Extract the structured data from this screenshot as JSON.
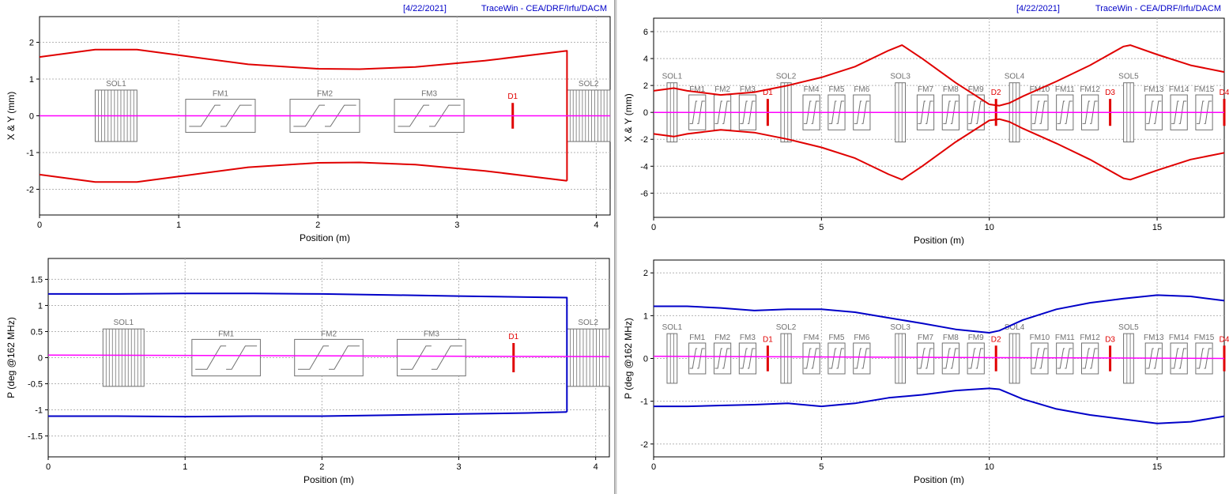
{
  "header": {
    "date": "[4/22/2021]",
    "app": "TraceWin - CEA/DRF/Irfu/DACM"
  },
  "colors": {
    "envelope_xy": "#e00000",
    "envelope_phase": "#0000c8",
    "centroid": "#ff00ff",
    "diagnostic": "#e00000",
    "element": "#707070",
    "grid": "#b4b4b4"
  },
  "chart_data": [
    {
      "type": "line",
      "xlabel": "Position (m)",
      "ylabel": "X & Y (mm)",
      "xlim": [
        0,
        4.1
      ],
      "ylim": [
        -2.7,
        2.7
      ],
      "xticks": [
        "0",
        "1",
        "2",
        "3",
        "4"
      ],
      "xtick_values": [
        0,
        1,
        2,
        3,
        4
      ],
      "yticks": [
        "2",
        "1",
        "0",
        "-1",
        "-2"
      ],
      "ytick_values": [
        2,
        1,
        0,
        -1,
        -2
      ],
      "grid": true,
      "series": [
        {
          "x": [
            0,
            0.4,
            0.7,
            1.0,
            1.5,
            2.0,
            2.3,
            2.7,
            3.2,
            3.79,
            3.79
          ],
          "y": [
            1.6,
            1.8,
            1.8,
            1.65,
            1.4,
            1.28,
            1.27,
            1.33,
            1.5,
            1.77,
            -1.77
          ],
          "color": "#e00000"
        },
        {
          "x": [
            0,
            0.4,
            0.7,
            1.0,
            1.5,
            2.0,
            2.3,
            2.7,
            3.2,
            3.79
          ],
          "y": [
            -1.6,
            -1.8,
            -1.8,
            -1.65,
            -1.4,
            -1.28,
            -1.27,
            -1.33,
            -1.5,
            -1.77
          ],
          "color": "#e00000"
        },
        {
          "x": [
            0,
            4.1
          ],
          "y": [
            0.0,
            0.0
          ],
          "color": "#ff00ff"
        }
      ],
      "elements": [
        {
          "label": "SOL1",
          "kind": "sol",
          "x0": 0.4,
          "x1": 0.7,
          "h": 0.7
        },
        {
          "label": "FM1",
          "kind": "fm",
          "x0": 1.05,
          "x1": 1.55,
          "h": 0.45
        },
        {
          "label": "FM2",
          "kind": "fm",
          "x0": 1.8,
          "x1": 2.3,
          "h": 0.45
        },
        {
          "label": "FM3",
          "kind": "fm",
          "x0": 2.55,
          "x1": 3.05,
          "h": 0.45
        },
        {
          "label": "D1",
          "kind": "diag",
          "x0": 3.4,
          "x1": 3.4,
          "h": 0.35
        },
        {
          "label": "SOL2",
          "kind": "sol",
          "x0": 3.79,
          "x1": 4.1,
          "h": 0.7
        }
      ]
    },
    {
      "type": "line",
      "xlabel": "Position (m)",
      "ylabel": "P (deg @162 MHz)",
      "xlim": [
        0,
        4.1
      ],
      "ylim": [
        -1.9,
        1.9
      ],
      "xticks": [
        "0",
        "1",
        "2",
        "3",
        "4"
      ],
      "xtick_values": [
        0,
        1,
        2,
        3,
        4
      ],
      "yticks": [
        "1.5",
        "1",
        "0.5",
        "0",
        "-0.5",
        "-1",
        "-1.5"
      ],
      "ytick_values": [
        1.5,
        1,
        0.5,
        0,
        -0.5,
        -1,
        -1.5
      ],
      "grid": true,
      "series": [
        {
          "x": [
            0,
            0.5,
            1.0,
            1.5,
            2.0,
            2.5,
            3.0,
            3.5,
            3.79,
            3.79
          ],
          "y": [
            1.22,
            1.22,
            1.23,
            1.23,
            1.22,
            1.2,
            1.18,
            1.16,
            1.15,
            -1.04
          ],
          "color": "#0000c8"
        },
        {
          "x": [
            0,
            0.5,
            1.0,
            1.5,
            2.0,
            2.5,
            3.0,
            3.5,
            3.79
          ],
          "y": [
            -1.12,
            -1.12,
            -1.13,
            -1.12,
            -1.12,
            -1.1,
            -1.08,
            -1.06,
            -1.04
          ],
          "color": "#0000c8"
        },
        {
          "x": [
            0,
            4.1
          ],
          "y": [
            0.05,
            0.02
          ],
          "color": "#ff00ff"
        }
      ],
      "elements": [
        {
          "label": "SOL1",
          "kind": "sol",
          "x0": 0.4,
          "x1": 0.7,
          "h": 0.55
        },
        {
          "label": "FM1",
          "kind": "fm",
          "x0": 1.05,
          "x1": 1.55,
          "h": 0.35
        },
        {
          "label": "FM2",
          "kind": "fm",
          "x0": 1.8,
          "x1": 2.3,
          "h": 0.35
        },
        {
          "label": "FM3",
          "kind": "fm",
          "x0": 2.55,
          "x1": 3.05,
          "h": 0.35
        },
        {
          "label": "D1",
          "kind": "diag",
          "x0": 3.4,
          "x1": 3.4,
          "h": 0.28
        },
        {
          "label": "SOL2",
          "kind": "sol",
          "x0": 3.79,
          "x1": 4.1,
          "h": 0.55
        }
      ]
    },
    {
      "type": "line",
      "xlabel": "Position (m)",
      "ylabel": "X & Y (mm)",
      "xlim": [
        0,
        17
      ],
      "ylim": [
        -7.8,
        7.0
      ],
      "xticks": [
        "0",
        "5",
        "10",
        "15"
      ],
      "xtick_values": [
        0,
        5,
        10,
        15
      ],
      "yticks": [
        "6",
        "4",
        "2",
        "0",
        "-2",
        "-4",
        "-6"
      ],
      "ytick_values": [
        6,
        4,
        2,
        0,
        -2,
        -4,
        -6
      ],
      "grid": true,
      "series": [
        {
          "x": [
            0,
            0.6,
            1.0,
            2.0,
            3.0,
            4.0,
            5.0,
            6.0,
            7.0,
            7.4,
            8.0,
            9.0,
            10.0,
            10.3,
            10.6,
            11.0,
            12.0,
            13.0,
            14.0,
            14.2,
            15.0,
            16.0,
            17.0
          ],
          "y": [
            1.6,
            1.8,
            1.6,
            1.3,
            1.5,
            2.0,
            2.6,
            3.4,
            4.6,
            5.0,
            4.0,
            2.2,
            0.6,
            0.5,
            0.7,
            1.2,
            2.3,
            3.5,
            4.9,
            5.0,
            4.3,
            3.5,
            3.0
          ],
          "color": "#e00000"
        },
        {
          "x": [
            0,
            0.6,
            1.0,
            2.0,
            3.0,
            4.0,
            5.0,
            6.0,
            7.0,
            7.4,
            8.0,
            9.0,
            10.0,
            10.3,
            10.6,
            11.0,
            12.0,
            13.0,
            14.0,
            14.2,
            15.0,
            16.0,
            17.0
          ],
          "y": [
            -1.6,
            -1.8,
            -1.6,
            -1.3,
            -1.5,
            -2.0,
            -2.6,
            -3.4,
            -4.6,
            -5.0,
            -4.0,
            -2.2,
            -0.6,
            -0.5,
            -0.7,
            -1.2,
            -2.3,
            -3.5,
            -4.9,
            -5.0,
            -4.3,
            -3.5,
            -3.0
          ],
          "color": "#e00000"
        },
        {
          "x": [
            0,
            17
          ],
          "y": [
            0.0,
            0.0
          ],
          "color": "#ff00ff"
        }
      ],
      "elements": [
        {
          "label": "SOL1",
          "kind": "sol",
          "x0": 0.4,
          "x1": 0.7,
          "h": 2.2
        },
        {
          "label": "FM1",
          "kind": "fm",
          "x0": 1.05,
          "x1": 1.55,
          "h": 1.3
        },
        {
          "label": "FM2",
          "kind": "fm",
          "x0": 1.8,
          "x1": 2.3,
          "h": 1.3
        },
        {
          "label": "FM3",
          "kind": "fm",
          "x0": 2.55,
          "x1": 3.05,
          "h": 1.3
        },
        {
          "label": "D1",
          "kind": "diag",
          "x0": 3.4,
          "x1": 3.4,
          "h": 1.0
        },
        {
          "label": "SOL2",
          "kind": "sol",
          "x0": 3.79,
          "x1": 4.1,
          "h": 2.2
        },
        {
          "label": "FM4",
          "kind": "fm",
          "x0": 4.45,
          "x1": 4.95,
          "h": 1.3
        },
        {
          "label": "FM5",
          "kind": "fm",
          "x0": 5.2,
          "x1": 5.7,
          "h": 1.3
        },
        {
          "label": "FM6",
          "kind": "fm",
          "x0": 5.95,
          "x1": 6.45,
          "h": 1.3
        },
        {
          "label": "SOL3",
          "kind": "sol",
          "x0": 7.2,
          "x1": 7.5,
          "h": 2.2
        },
        {
          "label": "FM7",
          "kind": "fm",
          "x0": 7.85,
          "x1": 8.35,
          "h": 1.3
        },
        {
          "label": "FM8",
          "kind": "fm",
          "x0": 8.6,
          "x1": 9.1,
          "h": 1.3
        },
        {
          "label": "FM9",
          "kind": "fm",
          "x0": 9.35,
          "x1": 9.85,
          "h": 1.3
        },
        {
          "label": "D2",
          "kind": "diag",
          "x0": 10.2,
          "x1": 10.2,
          "h": 1.0
        },
        {
          "label": "SOL4",
          "kind": "sol",
          "x0": 10.6,
          "x1": 10.9,
          "h": 2.2
        },
        {
          "label": "FM10",
          "kind": "fm",
          "x0": 11.25,
          "x1": 11.75,
          "h": 1.3
        },
        {
          "label": "FM11",
          "kind": "fm",
          "x0": 12.0,
          "x1": 12.5,
          "h": 1.3
        },
        {
          "label": "FM12",
          "kind": "fm",
          "x0": 12.75,
          "x1": 13.25,
          "h": 1.3
        },
        {
          "label": "D3",
          "kind": "diag",
          "x0": 13.6,
          "x1": 13.6,
          "h": 1.0
        },
        {
          "label": "SOL5",
          "kind": "sol",
          "x0": 14.0,
          "x1": 14.3,
          "h": 2.2
        },
        {
          "label": "FM13",
          "kind": "fm",
          "x0": 14.65,
          "x1": 15.15,
          "h": 1.3
        },
        {
          "label": "FM14",
          "kind": "fm",
          "x0": 15.4,
          "x1": 15.9,
          "h": 1.3
        },
        {
          "label": "FM15",
          "kind": "fm",
          "x0": 16.15,
          "x1": 16.65,
          "h": 1.3
        },
        {
          "label": "D4",
          "kind": "diag",
          "x0": 17.0,
          "x1": 17.0,
          "h": 1.0
        }
      ]
    },
    {
      "type": "line",
      "xlabel": "Position (m)",
      "ylabel": "P (deg @162 MHz)",
      "xlim": [
        0,
        17
      ],
      "ylim": [
        -2.3,
        2.3
      ],
      "xticks": [
        "0",
        "5",
        "10",
        "15"
      ],
      "xtick_values": [
        0,
        5,
        10,
        15
      ],
      "yticks": [
        "2",
        "1",
        "0",
        "-1",
        "-2"
      ],
      "ytick_values": [
        2,
        1,
        0,
        -1,
        -2
      ],
      "grid": true,
      "series": [
        {
          "x": [
            0,
            1.0,
            2.0,
            3.0,
            4.0,
            5.0,
            6.0,
            7.0,
            8.0,
            9.0,
            10.0,
            10.3,
            11.0,
            12.0,
            13.0,
            14.0,
            15.0,
            16.0,
            17.0
          ],
          "y": [
            1.22,
            1.22,
            1.18,
            1.12,
            1.15,
            1.15,
            1.08,
            0.95,
            0.82,
            0.68,
            0.6,
            0.65,
            0.9,
            1.15,
            1.3,
            1.4,
            1.48,
            1.45,
            1.35
          ],
          "color": "#0000c8"
        },
        {
          "x": [
            0,
            1.0,
            2.0,
            3.0,
            4.0,
            5.0,
            6.0,
            7.0,
            8.0,
            9.0,
            10.0,
            10.3,
            11.0,
            12.0,
            13.0,
            14.0,
            15.0,
            16.0,
            17.0
          ],
          "y": [
            -1.12,
            -1.12,
            -1.1,
            -1.08,
            -1.05,
            -1.12,
            -1.05,
            -0.92,
            -0.85,
            -0.75,
            -0.7,
            -0.72,
            -0.95,
            -1.18,
            -1.32,
            -1.42,
            -1.52,
            -1.48,
            -1.35
          ],
          "color": "#0000c8"
        },
        {
          "x": [
            0,
            17
          ],
          "y": [
            0.05,
            0.0
          ],
          "color": "#ff00ff"
        }
      ],
      "elements": [
        {
          "label": "SOL1",
          "kind": "sol",
          "x0": 0.4,
          "x1": 0.7,
          "h": 0.58
        },
        {
          "label": "FM1",
          "kind": "fm",
          "x0": 1.05,
          "x1": 1.55,
          "h": 0.36
        },
        {
          "label": "FM2",
          "kind": "fm",
          "x0": 1.8,
          "x1": 2.3,
          "h": 0.36
        },
        {
          "label": "FM3",
          "kind": "fm",
          "x0": 2.55,
          "x1": 3.05,
          "h": 0.36
        },
        {
          "label": "D1",
          "kind": "diag",
          "x0": 3.4,
          "x1": 3.4,
          "h": 0.3
        },
        {
          "label": "SOL2",
          "kind": "sol",
          "x0": 3.79,
          "x1": 4.1,
          "h": 0.58
        },
        {
          "label": "FM4",
          "kind": "fm",
          "x0": 4.45,
          "x1": 4.95,
          "h": 0.36
        },
        {
          "label": "FM5",
          "kind": "fm",
          "x0": 5.2,
          "x1": 5.7,
          "h": 0.36
        },
        {
          "label": "FM6",
          "kind": "fm",
          "x0": 5.95,
          "x1": 6.45,
          "h": 0.36
        },
        {
          "label": "SOL3",
          "kind": "sol",
          "x0": 7.2,
          "x1": 7.5,
          "h": 0.58
        },
        {
          "label": "FM7",
          "kind": "fm",
          "x0": 7.85,
          "x1": 8.35,
          "h": 0.36
        },
        {
          "label": "FM8",
          "kind": "fm",
          "x0": 8.6,
          "x1": 9.1,
          "h": 0.36
        },
        {
          "label": "FM9",
          "kind": "fm",
          "x0": 9.35,
          "x1": 9.85,
          "h": 0.36
        },
        {
          "label": "D2",
          "kind": "diag",
          "x0": 10.2,
          "x1": 10.2,
          "h": 0.3
        },
        {
          "label": "SOL4",
          "kind": "sol",
          "x0": 10.6,
          "x1": 10.9,
          "h": 0.58
        },
        {
          "label": "FM10",
          "kind": "fm",
          "x0": 11.25,
          "x1": 11.75,
          "h": 0.36
        },
        {
          "label": "FM11",
          "kind": "fm",
          "x0": 12.0,
          "x1": 12.5,
          "h": 0.36
        },
        {
          "label": "FM12",
          "kind": "fm",
          "x0": 12.75,
          "x1": 13.25,
          "h": 0.36
        },
        {
          "label": "D3",
          "kind": "diag",
          "x0": 13.6,
          "x1": 13.6,
          "h": 0.3
        },
        {
          "label": "SOL5",
          "kind": "sol",
          "x0": 14.0,
          "x1": 14.3,
          "h": 0.58
        },
        {
          "label": "FM13",
          "kind": "fm",
          "x0": 14.65,
          "x1": 15.15,
          "h": 0.36
        },
        {
          "label": "FM14",
          "kind": "fm",
          "x0": 15.4,
          "x1": 15.9,
          "h": 0.36
        },
        {
          "label": "FM15",
          "kind": "fm",
          "x0": 16.15,
          "x1": 16.65,
          "h": 0.36
        },
        {
          "label": "D4",
          "kind": "diag",
          "x0": 17.0,
          "x1": 17.0,
          "h": 0.3
        }
      ]
    }
  ]
}
